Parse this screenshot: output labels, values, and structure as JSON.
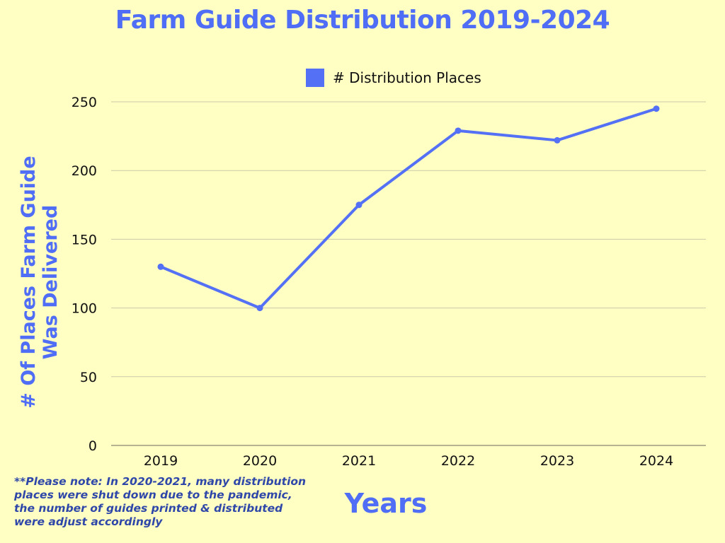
{
  "colors": {
    "background": "#ffffc4",
    "accent": "#4f6df5",
    "series": "#5470f5",
    "note": "#2f47a8",
    "grid": "#c9c9a8",
    "axis": "#9c9c80",
    "tick_text": "#111111"
  },
  "chart_data": {
    "type": "line",
    "title": "Farm Guide Distribution 2019-2024",
    "xlabel": "Years",
    "ylabel_lines": [
      "# Of Places Farm Guide",
      "Was Delivered"
    ],
    "categories": [
      "2019",
      "2020",
      "2021",
      "2022",
      "2023",
      "2024"
    ],
    "series": [
      {
        "name": "# Distribution Places",
        "values": [
          130,
          100,
          175,
          229,
          222,
          245
        ]
      }
    ],
    "yticks": [
      0,
      50,
      100,
      150,
      200,
      250
    ],
    "ylim": [
      0,
      250
    ],
    "grid": true,
    "legend_position": "top-center",
    "annotation": "**Please note: In 2020-2021,  many distribution places were shut down due to the pandemic, the number of guides printed & distributed were adjust accordingly"
  }
}
